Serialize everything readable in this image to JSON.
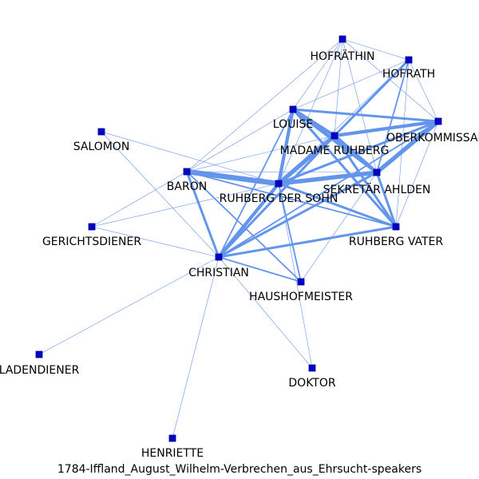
{
  "title": "1784-Iffland_August_Wilhelm-Verbrechen_aus_Ehrsucht-speakers",
  "colors": {
    "edge": "#6495ed",
    "node": "#0000cd",
    "node_border": "#000080",
    "text": "#000000"
  },
  "nodes": [
    {
      "id": "HOFRATHIN",
      "label": "HOFRÄTHIN"
    },
    {
      "id": "HOFRATH",
      "label": "HOFRATH"
    },
    {
      "id": "LOUISE",
      "label": "LOUISE"
    },
    {
      "id": "OBERKOMMISSAR",
      "label": "OBERKOMMISSAR"
    },
    {
      "id": "MADAME_RUHBERG",
      "label": "MADAME RUHBERG"
    },
    {
      "id": "SALOMON",
      "label": "SALOMON"
    },
    {
      "id": "SEKRETAR_AHLDEN",
      "label": "SEKRETÄR AHLDEN"
    },
    {
      "id": "BARON",
      "label": "BARON"
    },
    {
      "id": "RUHBERG_SOHN",
      "label": "RUHBERG DER SOHN"
    },
    {
      "id": "GERICHTSDIENER",
      "label": "GERICHTSDIENER"
    },
    {
      "id": "RUHBERG_VATER",
      "label": "RUHBERG VATER"
    },
    {
      "id": "CHRISTIAN",
      "label": "CHRISTIAN"
    },
    {
      "id": "HAUSHOFMEISTER",
      "label": "HAUSHOFMEISTER"
    },
    {
      "id": "LADENDIENER",
      "label": "LADENDIENER"
    },
    {
      "id": "DOKTOR",
      "label": "DOKTOR"
    },
    {
      "id": "HENRIETTE",
      "label": "HENRIETTE"
    }
  ],
  "edges": [
    {
      "source": "HOFRATHIN",
      "target": "HOFRATH",
      "weight": 1
    },
    {
      "source": "HOFRATHIN",
      "target": "OBERKOMMISSAR",
      "weight": 1
    },
    {
      "source": "HOFRATHIN",
      "target": "LOUISE",
      "weight": 1
    },
    {
      "source": "HOFRATHIN",
      "target": "MADAME_RUHBERG",
      "weight": 1
    },
    {
      "source": "HOFRATHIN",
      "target": "SEKRETAR_AHLDEN",
      "weight": 1
    },
    {
      "source": "HOFRATHIN",
      "target": "RUHBERG_SOHN",
      "weight": 1
    },
    {
      "source": "HOFRATHIN",
      "target": "BARON",
      "weight": 1
    },
    {
      "source": "HOFRATH",
      "target": "OBERKOMMISSAR",
      "weight": 1
    },
    {
      "source": "HOFRATH",
      "target": "LOUISE",
      "weight": 1
    },
    {
      "source": "HOFRATH",
      "target": "MADAME_RUHBERG",
      "weight": 3
    },
    {
      "source": "HOFRATH",
      "target": "SEKRETAR_AHLDEN",
      "weight": 2
    },
    {
      "source": "HOFRATH",
      "target": "RUHBERG_SOHN",
      "weight": 1
    },
    {
      "source": "HOFRATH",
      "target": "RUHBERG_VATER",
      "weight": 1
    },
    {
      "source": "LOUISE",
      "target": "OBERKOMMISSAR",
      "weight": 3
    },
    {
      "source": "LOUISE",
      "target": "MADAME_RUHBERG",
      "weight": 4
    },
    {
      "source": "LOUISE",
      "target": "SEKRETAR_AHLDEN",
      "weight": 4
    },
    {
      "source": "LOUISE",
      "target": "RUHBERG_SOHN",
      "weight": 4
    },
    {
      "source": "LOUISE",
      "target": "RUHBERG_VATER",
      "weight": 3
    },
    {
      "source": "LOUISE",
      "target": "CHRISTIAN",
      "weight": 2
    },
    {
      "source": "LOUISE",
      "target": "BARON",
      "weight": 1
    },
    {
      "source": "OBERKOMMISSAR",
      "target": "MADAME_RUHBERG",
      "weight": 4
    },
    {
      "source": "OBERKOMMISSAR",
      "target": "SEKRETAR_AHLDEN",
      "weight": 5
    },
    {
      "source": "OBERKOMMISSAR",
      "target": "RUHBERG_SOHN",
      "weight": 3
    },
    {
      "source": "OBERKOMMISSAR",
      "target": "RUHBERG_VATER",
      "weight": 1
    },
    {
      "source": "OBERKOMMISSAR",
      "target": "CHRISTIAN",
      "weight": 2
    },
    {
      "source": "MADAME_RUHBERG",
      "target": "SEKRETAR_AHLDEN",
      "weight": 4
    },
    {
      "source": "MADAME_RUHBERG",
      "target": "RUHBERG_SOHN",
      "weight": 5
    },
    {
      "source": "MADAME_RUHBERG",
      "target": "RUHBERG_VATER",
      "weight": 3
    },
    {
      "source": "MADAME_RUHBERG",
      "target": "CHRISTIAN",
      "weight": 3
    },
    {
      "source": "MADAME_RUHBERG",
      "target": "BARON",
      "weight": 1
    },
    {
      "source": "SEKRETAR_AHLDEN",
      "target": "RUHBERG_SOHN",
      "weight": 5
    },
    {
      "source": "SEKRETAR_AHLDEN",
      "target": "RUHBERG_VATER",
      "weight": 3
    },
    {
      "source": "SEKRETAR_AHLDEN",
      "target": "CHRISTIAN",
      "weight": 3
    },
    {
      "source": "SEKRETAR_AHLDEN",
      "target": "HAUSHOFMEISTER",
      "weight": 1
    },
    {
      "source": "SEKRETAR_AHLDEN",
      "target": "BARON",
      "weight": 1
    },
    {
      "source": "BARON",
      "target": "RUHBERG_SOHN",
      "weight": 6
    },
    {
      "source": "BARON",
      "target": "CHRISTIAN",
      "weight": 3
    },
    {
      "source": "BARON",
      "target": "HAUSHOFMEISTER",
      "weight": 2
    },
    {
      "source": "BARON",
      "target": "RUHBERG_VATER",
      "weight": 2
    },
    {
      "source": "BARON",
      "target": "GERICHTSDIENER",
      "weight": 1
    },
    {
      "source": "SALOMON",
      "target": "RUHBERG_SOHN",
      "weight": 1
    },
    {
      "source": "SALOMON",
      "target": "CHRISTIAN",
      "weight": 1
    },
    {
      "source": "RUHBERG_SOHN",
      "target": "CHRISTIAN",
      "weight": 4
    },
    {
      "source": "RUHBERG_SOHN",
      "target": "RUHBERG_VATER",
      "weight": 3
    },
    {
      "source": "RUHBERG_SOHN",
      "target": "HAUSHOFMEISTER",
      "weight": 2
    },
    {
      "source": "RUHBERG_SOHN",
      "target": "GERICHTSDIENER",
      "weight": 1
    },
    {
      "source": "RUHBERG_SOHN",
      "target": "DOKTOR",
      "weight": 1
    },
    {
      "source": "RUHBERG_VATER",
      "target": "CHRISTIAN",
      "weight": 3
    },
    {
      "source": "GERICHTSDIENER",
      "target": "CHRISTIAN",
      "weight": 1
    },
    {
      "source": "CHRISTIAN",
      "target": "HAUSHOFMEISTER",
      "weight": 2
    },
    {
      "source": "CHRISTIAN",
      "target": "LADENDIENER",
      "weight": 1
    },
    {
      "source": "CHRISTIAN",
      "target": "HENRIETTE",
      "weight": 1
    },
    {
      "source": "CHRISTIAN",
      "target": "DOKTOR",
      "weight": 1
    }
  ]
}
